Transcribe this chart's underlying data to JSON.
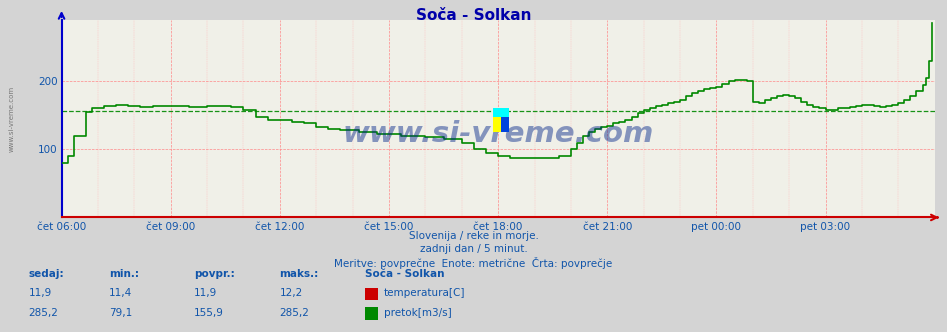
{
  "title": "Soča - Solkan",
  "subtitle1": "Slovenija / reke in morje.",
  "subtitle2": "zadnji dan / 5 minut.",
  "subtitle3": "Meritve: povprečne  Enote: metrične  Črta: povprečje",
  "ylim": [
    0,
    290
  ],
  "xlim_hours": 24,
  "avg_flow": 155.9,
  "bg_color": "#d4d4d4",
  "plot_bg_color": "#f0f0e8",
  "flow_color": "#008800",
  "axis_x_color": "#cc0000",
  "axis_y_color": "#0000cc",
  "title_color": "#0000aa",
  "text_color": "#1155aa",
  "watermark": "www.si-vreme.com",
  "watermark_color": "#002288",
  "station_name": "Soča - Solkan",
  "temp_label": "temperatura[C]",
  "flow_label": "pretok[m3/s]",
  "temp_box_color": "#cc0000",
  "flow_box_color": "#008800",
  "stats_headers": [
    "sedaj:",
    "min.:",
    "povpr.:",
    "maks.:"
  ],
  "temp_stats": [
    "11,9",
    "11,4",
    "11,9",
    "12,2"
  ],
  "flow_stats": [
    "285,2",
    "79,1",
    "155,9",
    "285,2"
  ],
  "x_tick_pos": [
    0,
    3,
    6,
    9,
    12,
    15,
    18,
    21
  ],
  "x_tick_labels": [
    "čet 06:00",
    "čet 09:00",
    "čet 12:00",
    "čet 15:00",
    "čet 18:00",
    "čet 21:00",
    "pet 00:00",
    "pet 03:00"
  ],
  "y_tick_pos": [
    100,
    200
  ],
  "y_tick_labels": [
    "100",
    "200"
  ],
  "grid_major_color": "#ff8888",
  "grid_minor_color": "#ffbbbb",
  "left_label": "www.si-vreme.com"
}
